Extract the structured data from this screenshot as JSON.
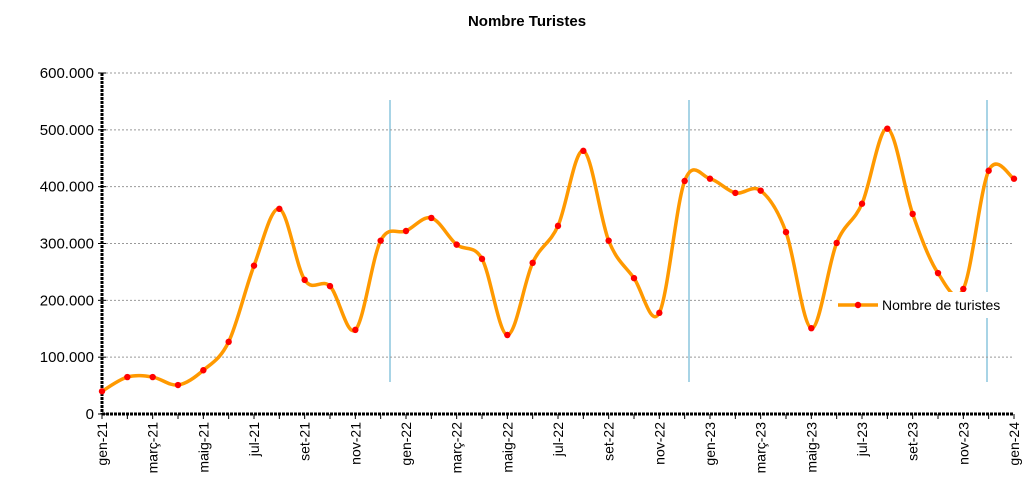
{
  "chart_data": {
    "type": "line",
    "title": "Nombre Turistes",
    "categories": [
      "gen-21",
      null,
      "març-21",
      null,
      "maig-21",
      null,
      "jul-21",
      null,
      "set-21",
      null,
      "nov-21",
      null,
      "gen-22",
      null,
      "març-22",
      null,
      "maig-22",
      null,
      "jul-22",
      null,
      "set-22",
      null,
      "nov-22",
      null,
      "gen-23",
      null,
      "març-23",
      null,
      "maig-23",
      null,
      "jul-23",
      null,
      "set-23",
      null,
      "nov-23",
      null,
      "gen-24"
    ],
    "series": [
      {
        "name": "Nombre de turistes",
        "color": "#ff9900",
        "marker_color": "#ff0000",
        "values": [
          40000,
          65000,
          65000,
          51000,
          77000,
          127000,
          261000,
          361000,
          236000,
          225000,
          148000,
          305000,
          322000,
          345000,
          298000,
          273000,
          139000,
          266000,
          331000,
          463000,
          305000,
          239000,
          178000,
          410000,
          414000,
          389000,
          393000,
          320000,
          151000,
          301000,
          370000,
          502000,
          352000,
          248000,
          220000,
          428000,
          414000
        ]
      }
    ],
    "ylim": [
      0,
      600000
    ],
    "yticks": [
      0,
      {
        "value": 100000,
        "label": "100.000"
      },
      {
        "value": 200000,
        "label": "200.000"
      },
      {
        "value": 300000,
        "label": "300.000"
      },
      {
        "value": 400000,
        "label": "400.000"
      },
      {
        "value": 500000,
        "label": "500.000"
      },
      {
        "value": 600000,
        "label": "600.000"
      }
    ],
    "grid": true,
    "legend": "right"
  }
}
